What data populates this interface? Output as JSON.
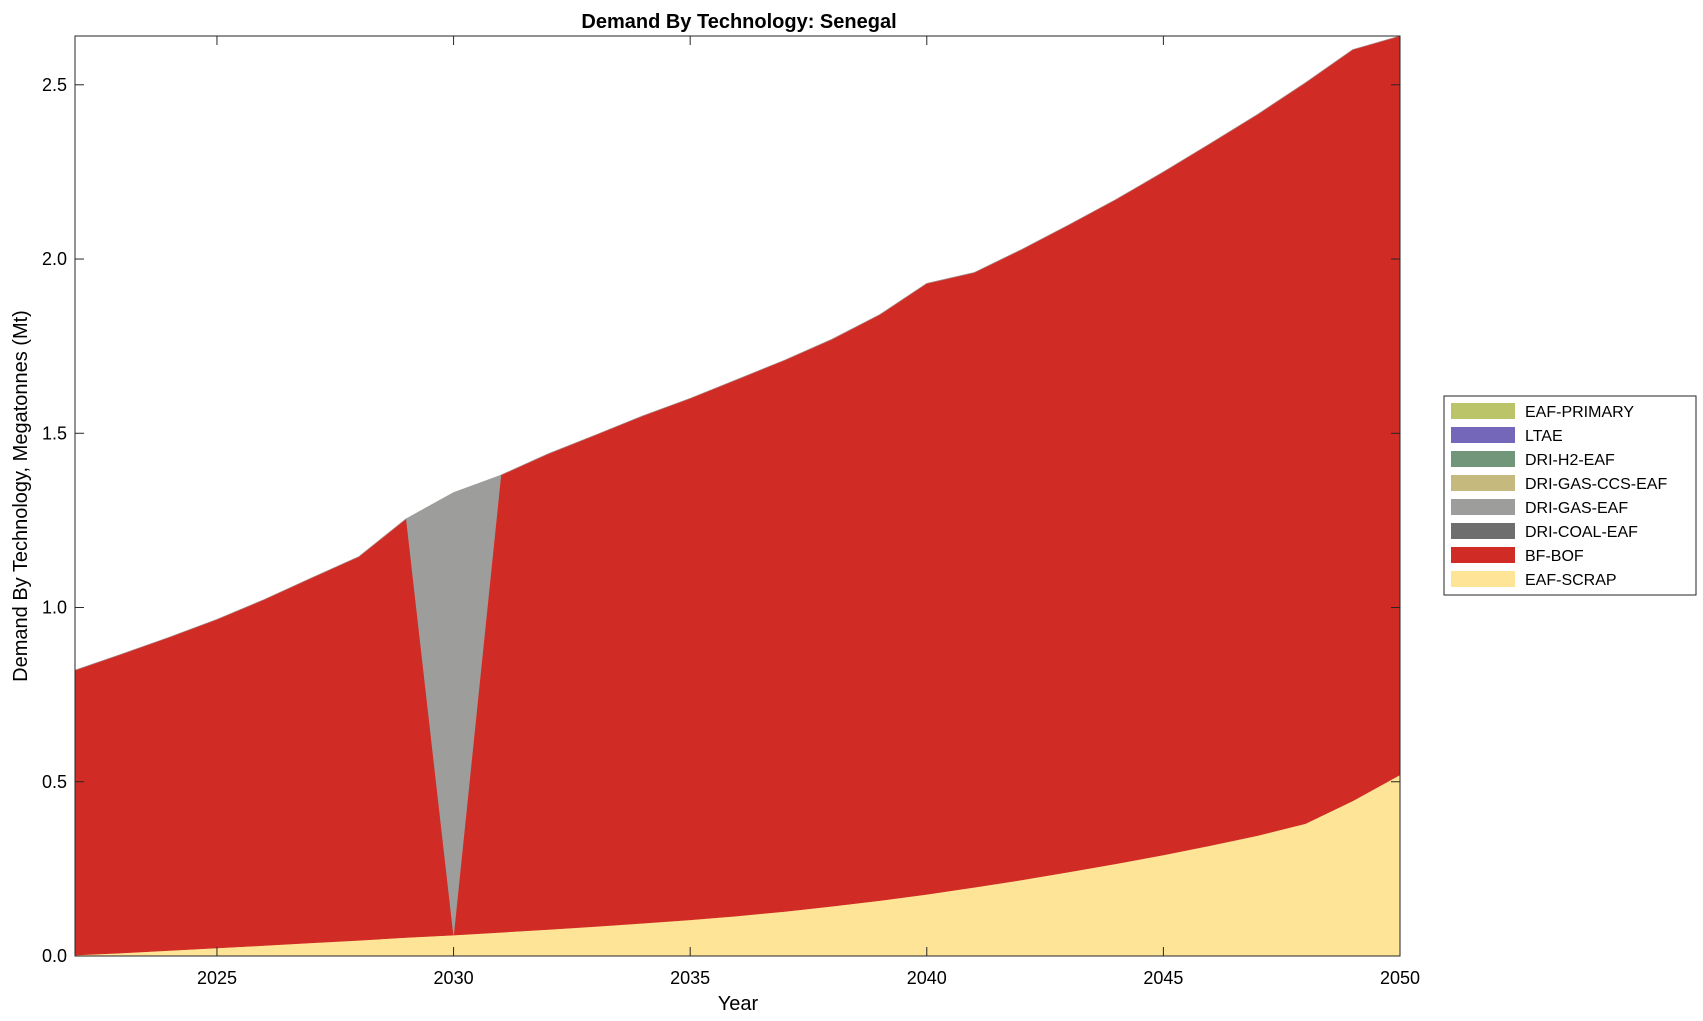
{
  "chart_data": {
    "type": "area",
    "stacked": true,
    "title": "Demand By Technology: Senegal",
    "xlabel": "Year",
    "ylabel": "Demand By Technology, Megatonnes (Mt)",
    "xlim": [
      2022,
      2050
    ],
    "ylim": [
      0,
      2.64
    ],
    "xticks": [
      2025,
      2030,
      2035,
      2040,
      2045,
      2050
    ],
    "xtick_labels": [
      "2025",
      "2030",
      "2035",
      "2040",
      "2045",
      "2050"
    ],
    "yticks": [
      0,
      0.5,
      1.0,
      1.5,
      2.0,
      2.5
    ],
    "ytick_labels": [
      "0.0",
      "0.5",
      "1.0",
      "1.5",
      "2.0",
      "2.5"
    ],
    "grid": false,
    "legend_position": "right",
    "x": [
      2022,
      2023,
      2024,
      2025,
      2026,
      2027,
      2028,
      2029,
      2030,
      2031,
      2032,
      2033,
      2034,
      2035,
      2036,
      2037,
      2038,
      2039,
      2040,
      2041,
      2042,
      2043,
      2044,
      2045,
      2046,
      2047,
      2048,
      2049,
      2050
    ],
    "series": [
      {
        "name": "EAF-SCRAP",
        "color": "#fde496",
        "values": [
          0.003,
          0.009,
          0.016,
          0.023,
          0.03,
          0.038,
          0.045,
          0.053,
          0.06,
          0.068,
          0.076,
          0.085,
          0.094,
          0.104,
          0.115,
          0.128,
          0.143,
          0.159,
          0.177,
          0.197,
          0.218,
          0.241,
          0.265,
          0.29,
          0.317,
          0.346,
          0.38,
          0.445,
          0.52
        ]
      },
      {
        "name": "BF-BOF",
        "color": "#d12b25",
        "values": [
          0.817,
          0.858,
          0.899,
          0.943,
          0.993,
          1.047,
          1.101,
          1.202,
          0.0,
          1.312,
          1.365,
          1.41,
          1.456,
          1.496,
          1.54,
          1.582,
          1.627,
          1.681,
          1.753,
          1.764,
          1.809,
          1.857,
          1.906,
          1.96,
          2.015,
          2.07,
          2.126,
          2.156,
          2.12
        ]
      },
      {
        "name": "DRI-COAL-EAF",
        "color": "#6e6e6e",
        "values": [
          0,
          0,
          0,
          0,
          0,
          0,
          0,
          0,
          0,
          0,
          0,
          0,
          0,
          0,
          0,
          0,
          0,
          0,
          0,
          0,
          0,
          0,
          0,
          0,
          0,
          0,
          0,
          0,
          0
        ]
      },
      {
        "name": "DRI-GAS-EAF",
        "color": "#9d9d9b",
        "values": [
          0,
          0,
          0,
          0,
          0,
          0,
          0,
          0,
          1.27,
          0,
          0,
          0,
          0,
          0,
          0,
          0,
          0,
          0,
          0,
          0,
          0,
          0,
          0,
          0,
          0,
          0,
          0,
          0,
          0
        ]
      },
      {
        "name": "DRI-GAS-CCS-EAF",
        "color": "#c6b97e",
        "values": [
          0,
          0,
          0,
          0,
          0,
          0,
          0,
          0,
          0,
          0,
          0,
          0,
          0,
          0,
          0,
          0,
          0,
          0,
          0,
          0,
          0,
          0,
          0,
          0,
          0,
          0,
          0,
          0,
          0
        ]
      },
      {
        "name": "DRI-H2-EAF",
        "color": "#729679",
        "values": [
          0,
          0,
          0,
          0,
          0,
          0,
          0,
          0,
          0,
          0,
          0,
          0,
          0,
          0,
          0,
          0,
          0,
          0,
          0,
          0,
          0,
          0,
          0,
          0,
          0,
          0,
          0,
          0,
          0
        ]
      },
      {
        "name": "LTAE",
        "color": "#7466b8",
        "values": [
          0,
          0,
          0,
          0,
          0,
          0,
          0,
          0,
          0,
          0,
          0,
          0,
          0,
          0,
          0,
          0,
          0,
          0,
          0,
          0,
          0,
          0,
          0,
          0,
          0,
          0,
          0,
          0,
          0
        ]
      },
      {
        "name": "EAF-PRIMARY",
        "color": "#bcc46a",
        "values": [
          0,
          0,
          0,
          0,
          0,
          0,
          0,
          0,
          0,
          0,
          0,
          0,
          0,
          0,
          0,
          0,
          0,
          0,
          0,
          0,
          0,
          0,
          0,
          0,
          0,
          0,
          0,
          0,
          0
        ]
      }
    ],
    "legend_order": [
      "EAF-PRIMARY",
      "LTAE",
      "DRI-H2-EAF",
      "DRI-GAS-CCS-EAF",
      "DRI-GAS-EAF",
      "DRI-COAL-EAF",
      "BF-BOF",
      "EAF-SCRAP"
    ]
  }
}
